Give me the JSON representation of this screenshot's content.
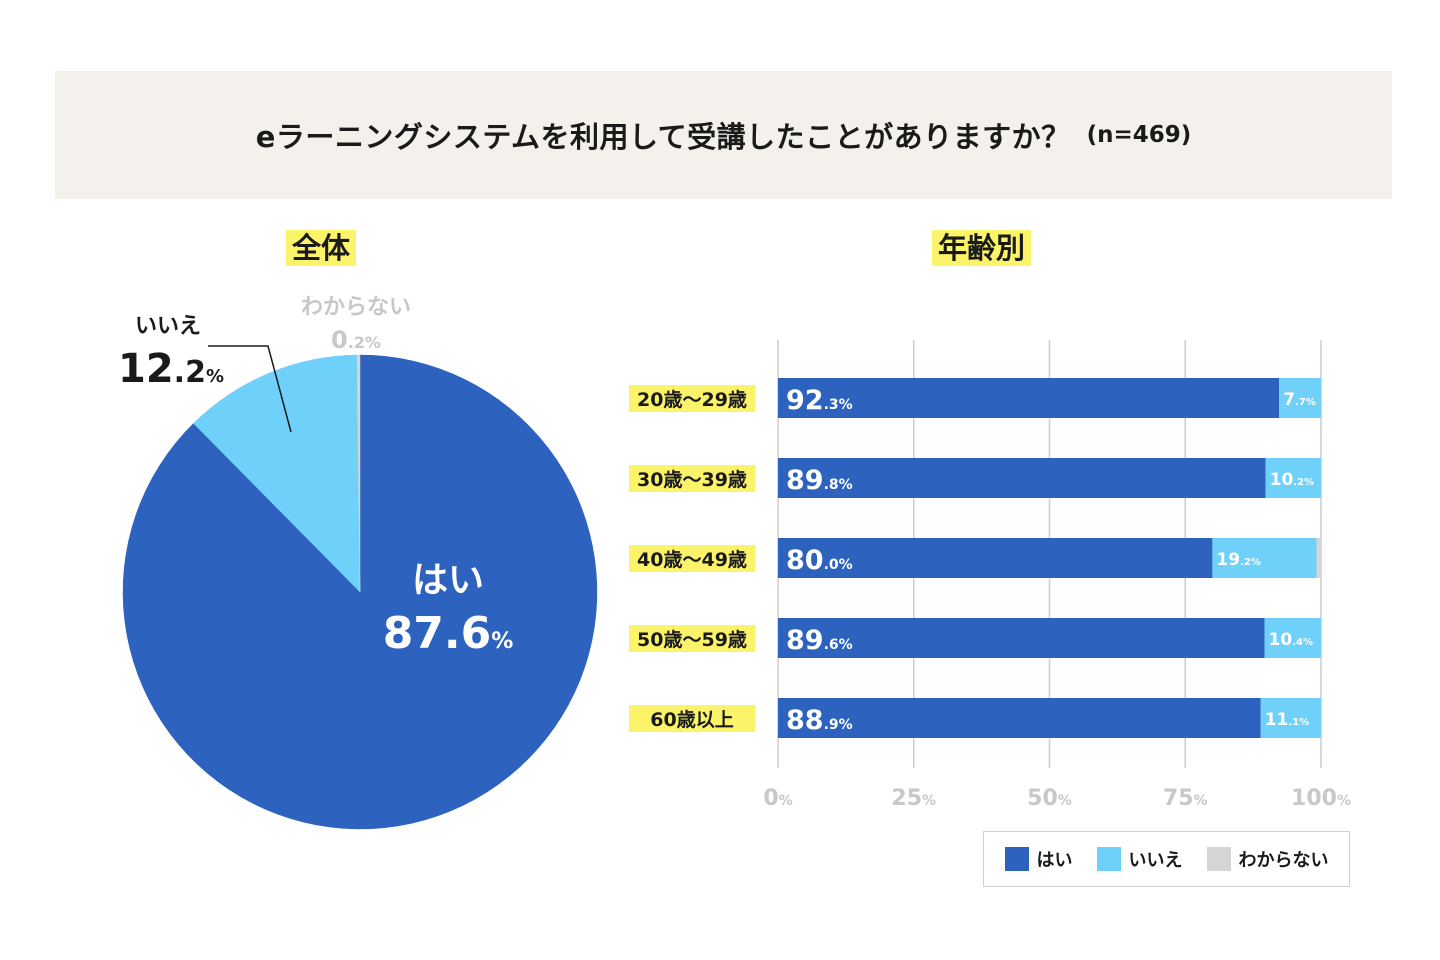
{
  "header": {
    "question": "eラーニングシステムを利用して受講したことがありますか？",
    "sample": "(n=469)"
  },
  "colors": {
    "yes": "#2d62bf",
    "no": "#6fd0fa",
    "unknown": "#d5d5d5",
    "highlight": "#fbf36a",
    "banner": "#f4f1ec",
    "grid": "#cccccc",
    "axis_text": "#c8c8c8"
  },
  "chart_data": [
    {
      "type": "pie",
      "title": "全体",
      "slices": [
        {
          "label": "はい",
          "value": 87.6,
          "int": "87",
          "dec": ".6",
          "unit": "%"
        },
        {
          "label": "いいえ",
          "value": 12.2,
          "int": "12",
          "dec": ".2",
          "unit": "%"
        },
        {
          "label": "わからない",
          "value": 0.2,
          "int": "0",
          "dec": ".2",
          "unit": "%"
        }
      ]
    },
    {
      "type": "bar",
      "orientation": "horizontal",
      "stacked": true,
      "title": "年齢別",
      "categories": [
        "20歳〜29歳",
        "30歳〜39歳",
        "40歳〜49歳",
        "50歳〜59歳",
        "60歳以上"
      ],
      "series": [
        {
          "name": "はい",
          "values": [
            92.3,
            89.8,
            80.0,
            89.6,
            88.9
          ],
          "labels": [
            [
              "92",
              ".3%"
            ],
            [
              "89",
              ".8%"
            ],
            [
              "80",
              ".0%"
            ],
            [
              "89",
              ".6%"
            ],
            [
              "88",
              ".9%"
            ]
          ]
        },
        {
          "name": "いいえ",
          "values": [
            7.7,
            10.2,
            19.2,
            10.4,
            11.1
          ],
          "labels": [
            [
              "7",
              ".7%"
            ],
            [
              "10",
              ".2%"
            ],
            [
              "19",
              ".2%"
            ],
            [
              "10",
              ".4%"
            ],
            [
              "11",
              ".1%"
            ]
          ]
        },
        {
          "name": "わからない",
          "values": [
            0,
            0,
            0.8,
            0,
            0
          ]
        }
      ],
      "xlim": [
        0,
        100
      ],
      "xticks": [
        {
          "num": "0",
          "unit": "%",
          "v": 0
        },
        {
          "num": "25",
          "unit": "%",
          "v": 25
        },
        {
          "num": "50",
          "unit": "%",
          "v": 50
        },
        {
          "num": "75",
          "unit": "%",
          "v": 75
        },
        {
          "num": "100",
          "unit": "%",
          "v": 100
        }
      ],
      "grid": true,
      "legend": [
        "はい",
        "いいえ",
        "わからない"
      ]
    }
  ]
}
